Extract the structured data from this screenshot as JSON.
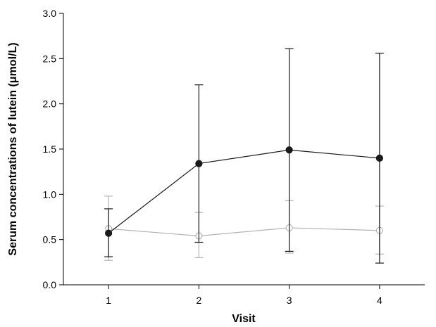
{
  "chart_data": {
    "type": "line",
    "title": "",
    "xlabel": "Visit",
    "ylabel": "Serum concentrations of lutein (μmol/L)",
    "x": [
      1,
      2,
      3,
      4
    ],
    "xlim": [
      0.5,
      4.5
    ],
    "ylim": [
      0,
      3.0
    ],
    "x_ticks": [
      "1",
      "2",
      "3",
      "4"
    ],
    "y_ticks": [
      "0.0",
      "0.5",
      "1.0",
      "1.5",
      "2.0",
      "2.5",
      "3.0"
    ],
    "grid": false,
    "series": [
      {
        "marker": "filled-circle",
        "color": "#1a1a1a",
        "values": [
          0.57,
          1.34,
          1.49,
          1.4
        ],
        "error_low": [
          0.31,
          0.47,
          0.37,
          0.24
        ],
        "error_high": [
          0.84,
          2.21,
          2.61,
          2.56
        ]
      },
      {
        "marker": "open-circle",
        "color": "#b3b3b3",
        "values": [
          0.62,
          0.54,
          0.63,
          0.6
        ],
        "error_low": [
          0.27,
          0.3,
          0.35,
          0.34
        ],
        "error_high": [
          0.98,
          0.8,
          0.93,
          0.87
        ]
      }
    ]
  }
}
